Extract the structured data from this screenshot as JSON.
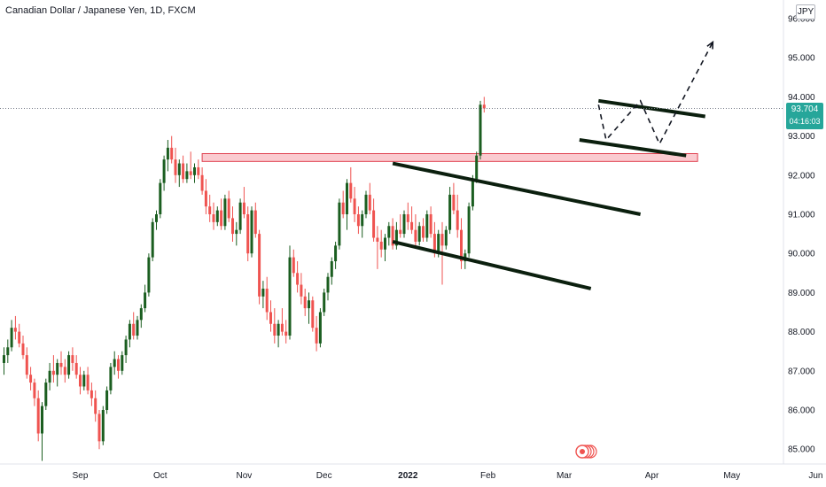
{
  "header": {
    "title": "Canadian Dollar / Japanese Yen, 1D, FXCM",
    "currency": "JPY"
  },
  "price_tag": {
    "price": "93.704",
    "countdown": "04:16:03"
  },
  "colors": {
    "up": "#26a69a",
    "up_body": "#1b5e20",
    "down": "#ef5350",
    "zone_fill": "#f8b9c0",
    "zone_border": "#e0404f",
    "trendline": "#0b1f0e",
    "projection": "#131722",
    "price_line": "#7a7f8c",
    "price_tag": "#26a69a"
  },
  "chart_data": {
    "type": "candlestick",
    "title": "Canadian Dollar / Japanese Yen, 1D, FXCM",
    "ylabel": "JPY",
    "ylim": [
      84.7,
      96.3
    ],
    "y_ticks": [
      {
        "value": 96.0,
        "label": "96.000"
      },
      {
        "value": 95.0,
        "label": "95.000"
      },
      {
        "value": 94.0,
        "label": "94.000"
      },
      {
        "value": 93.0,
        "label": "93.000"
      },
      {
        "value": 92.0,
        "label": "92.000"
      },
      {
        "value": 91.0,
        "label": "91.000"
      },
      {
        "value": 90.0,
        "label": "90.000"
      },
      {
        "value": 89.0,
        "label": "89.000"
      },
      {
        "value": 88.0,
        "label": "88.000"
      },
      {
        "value": 87.0,
        "label": "87.000"
      },
      {
        "value": 86.0,
        "label": "86.000"
      },
      {
        "value": 85.0,
        "label": "85.000"
      }
    ],
    "x_ticks": [
      {
        "label": "Sep",
        "bar": 20,
        "bold": false
      },
      {
        "label": "Oct",
        "bar": 41,
        "bold": false
      },
      {
        "label": "Nov",
        "bar": 63,
        "bold": false
      },
      {
        "label": "Dec",
        "bar": 84,
        "bold": false
      },
      {
        "label": "2022",
        "bar": 106,
        "bold": true
      },
      {
        "label": "Feb",
        "bar": 127,
        "bold": false
      },
      {
        "label": "Mar",
        "bar": 147,
        "bold": false
      },
      {
        "label": "Apr",
        "bar": 170,
        "bold": false
      },
      {
        "label": "May",
        "bar": 191,
        "bold": false
      },
      {
        "label": "Jun",
        "bar": 213,
        "bold": false
      }
    ],
    "last_price": 93.704,
    "candles": [
      [
        87.2,
        87.6,
        86.9,
        87.4
      ],
      [
        87.4,
        87.8,
        87.2,
        87.6
      ],
      [
        87.6,
        88.3,
        87.5,
        88.1
      ],
      [
        88.1,
        88.4,
        87.8,
        88.0
      ],
      [
        88.0,
        88.2,
        87.6,
        87.7
      ],
      [
        87.7,
        87.9,
        87.3,
        87.4
      ],
      [
        87.4,
        87.6,
        86.8,
        86.9
      ],
      [
        86.9,
        87.1,
        86.5,
        86.7
      ],
      [
        86.7,
        86.8,
        86.1,
        86.3
      ],
      [
        86.3,
        86.5,
        85.2,
        85.4
      ],
      [
        85.4,
        86.2,
        84.7,
        86.1
      ],
      [
        86.1,
        86.8,
        86.0,
        86.7
      ],
      [
        86.7,
        87.2,
        86.5,
        87.0
      ],
      [
        87.0,
        87.4,
        86.7,
        86.9
      ],
      [
        86.9,
        87.3,
        86.6,
        87.2
      ],
      [
        87.2,
        87.5,
        86.9,
        87.1
      ],
      [
        87.1,
        87.3,
        86.7,
        86.9
      ],
      [
        86.9,
        87.5,
        86.8,
        87.4
      ],
      [
        87.4,
        87.6,
        87.0,
        87.2
      ],
      [
        87.2,
        87.4,
        86.8,
        86.9
      ],
      [
        86.9,
        87.1,
        86.4,
        86.6
      ],
      [
        86.6,
        87.0,
        86.5,
        86.9
      ],
      [
        86.9,
        87.1,
        86.4,
        86.5
      ],
      [
        86.5,
        86.7,
        86.1,
        86.3
      ],
      [
        86.3,
        86.5,
        85.7,
        85.9
      ],
      [
        85.9,
        86.0,
        85.0,
        85.2
      ],
      [
        85.2,
        86.1,
        85.1,
        86.0
      ],
      [
        86.0,
        86.6,
        85.9,
        86.5
      ],
      [
        86.5,
        87.2,
        86.4,
        87.1
      ],
      [
        87.1,
        87.5,
        86.9,
        87.3
      ],
      [
        87.3,
        87.4,
        86.8,
        87.0
      ],
      [
        87.0,
        87.5,
        86.9,
        87.4
      ],
      [
        87.4,
        87.9,
        87.2,
        87.8
      ],
      [
        87.8,
        88.3,
        87.6,
        88.2
      ],
      [
        88.2,
        88.5,
        87.8,
        87.9
      ],
      [
        87.9,
        88.4,
        87.8,
        88.3
      ],
      [
        88.3,
        88.7,
        88.1,
        88.6
      ],
      [
        88.6,
        89.2,
        88.5,
        89.0
      ],
      [
        89.0,
        90.0,
        88.9,
        89.9
      ],
      [
        89.9,
        90.9,
        89.8,
        90.8
      ],
      [
        90.8,
        91.1,
        90.6,
        91.0
      ],
      [
        91.0,
        91.9,
        90.9,
        91.8
      ],
      [
        91.8,
        92.5,
        91.6,
        92.4
      ],
      [
        92.4,
        92.9,
        92.1,
        92.7
      ],
      [
        92.7,
        93.0,
        92.3,
        92.4
      ],
      [
        92.4,
        92.7,
        91.8,
        92.0
      ],
      [
        92.0,
        92.4,
        91.7,
        92.3
      ],
      [
        92.3,
        92.5,
        91.8,
        91.9
      ],
      [
        91.9,
        92.3,
        91.8,
        92.1
      ],
      [
        92.1,
        92.6,
        91.9,
        92.0
      ],
      [
        92.0,
        92.3,
        91.8,
        92.2
      ],
      [
        92.2,
        92.4,
        91.9,
        92.0
      ],
      [
        92.0,
        92.2,
        91.5,
        91.6
      ],
      [
        91.6,
        91.9,
        91.0,
        91.2
      ],
      [
        91.2,
        91.5,
        90.8,
        91.0
      ],
      [
        91.0,
        91.3,
        90.6,
        90.8
      ],
      [
        90.8,
        91.2,
        90.7,
        91.1
      ],
      [
        91.1,
        91.4,
        90.6,
        90.7
      ],
      [
        90.7,
        91.5,
        90.6,
        91.4
      ],
      [
        91.4,
        91.6,
        90.8,
        90.9
      ],
      [
        90.9,
        91.2,
        90.3,
        90.5
      ],
      [
        90.5,
        90.8,
        90.2,
        90.6
      ],
      [
        90.6,
        91.4,
        90.5,
        91.3
      ],
      [
        91.3,
        91.7,
        90.9,
        91.0
      ],
      [
        91.0,
        91.2,
        89.8,
        90.0
      ],
      [
        90.0,
        91.2,
        89.9,
        91.1
      ],
      [
        91.1,
        91.3,
        90.4,
        90.5
      ],
      [
        90.5,
        90.6,
        88.7,
        88.9
      ],
      [
        88.9,
        89.3,
        88.6,
        89.1
      ],
      [
        89.1,
        89.4,
        88.3,
        88.5
      ],
      [
        88.5,
        88.8,
        88.0,
        88.2
      ],
      [
        88.2,
        88.6,
        87.7,
        87.9
      ],
      [
        87.9,
        88.3,
        87.6,
        88.2
      ],
      [
        88.2,
        88.6,
        87.9,
        88.0
      ],
      [
        88.0,
        88.3,
        87.7,
        87.9
      ],
      [
        87.9,
        90.2,
        87.8,
        89.9
      ],
      [
        89.9,
        90.1,
        89.4,
        89.5
      ],
      [
        89.5,
        89.8,
        89.0,
        89.2
      ],
      [
        89.2,
        89.5,
        88.7,
        88.9
      ],
      [
        88.9,
        89.1,
        88.4,
        88.6
      ],
      [
        88.6,
        89.0,
        88.2,
        88.8
      ],
      [
        88.8,
        88.9,
        88.0,
        88.1
      ],
      [
        88.1,
        88.4,
        87.5,
        87.7
      ],
      [
        87.7,
        88.6,
        87.6,
        88.5
      ],
      [
        88.5,
        89.1,
        88.4,
        89.0
      ],
      [
        89.0,
        89.5,
        88.8,
        89.4
      ],
      [
        89.4,
        89.9,
        89.2,
        89.8
      ],
      [
        89.8,
        90.3,
        89.6,
        90.2
      ],
      [
        90.2,
        91.4,
        90.1,
        91.3
      ],
      [
        91.3,
        91.6,
        90.9,
        91.0
      ],
      [
        91.0,
        91.9,
        90.6,
        91.8
      ],
      [
        91.8,
        92.2,
        91.3,
        91.4
      ],
      [
        91.4,
        91.7,
        90.8,
        91.0
      ],
      [
        91.0,
        91.2,
        90.5,
        90.7
      ],
      [
        90.7,
        91.1,
        90.4,
        91.0
      ],
      [
        91.0,
        91.6,
        90.9,
        91.5
      ],
      [
        91.5,
        91.8,
        91.0,
        91.1
      ],
      [
        91.1,
        91.4,
        90.3,
        90.4
      ],
      [
        90.4,
        90.7,
        89.6,
        90.3
      ],
      [
        90.3,
        90.6,
        89.9,
        90.1
      ],
      [
        90.1,
        90.5,
        89.8,
        90.4
      ],
      [
        90.4,
        90.8,
        90.2,
        90.7
      ],
      [
        90.7,
        90.9,
        90.1,
        90.2
      ],
      [
        90.2,
        90.8,
        90.1,
        90.6
      ],
      [
        90.6,
        91.0,
        90.4,
        90.5
      ],
      [
        90.5,
        91.1,
        90.4,
        91.0
      ],
      [
        91.0,
        91.3,
        90.6,
        90.8
      ],
      [
        90.8,
        91.2,
        90.5,
        90.6
      ],
      [
        90.6,
        91.0,
        90.2,
        90.3
      ],
      [
        90.3,
        90.8,
        90.2,
        90.7
      ],
      [
        90.7,
        90.9,
        90.3,
        90.4
      ],
      [
        90.4,
        91.1,
        90.3,
        91.0
      ],
      [
        91.0,
        91.2,
        90.4,
        90.5
      ],
      [
        90.5,
        90.8,
        89.9,
        90.0
      ],
      [
        90.0,
        90.6,
        89.9,
        90.5
      ],
      [
        90.5,
        90.8,
        89.2,
        90.2
      ],
      [
        90.2,
        90.7,
        90.1,
        90.6
      ],
      [
        90.6,
        91.7,
        90.5,
        91.5
      ],
      [
        91.5,
        91.8,
        91.0,
        91.1
      ],
      [
        91.1,
        91.5,
        90.4,
        90.6
      ],
      [
        90.6,
        90.9,
        89.6,
        89.8
      ],
      [
        89.8,
        90.1,
        89.6,
        90.0
      ],
      [
        90.0,
        91.3,
        89.9,
        91.2
      ],
      [
        91.2,
        92.0,
        91.1,
        91.9
      ],
      [
        91.9,
        92.6,
        91.8,
        92.5
      ],
      [
        92.5,
        93.9,
        92.4,
        93.8
      ],
      [
        93.8,
        94.0,
        93.6,
        93.704
      ]
    ],
    "resistance_zone": {
      "y_low": 92.35,
      "y_high": 92.55,
      "from_bar": 52,
      "to_bar": 182
    },
    "trendlines": [
      {
        "name": "lower-channel-top",
        "from": [
          102,
          92.3
        ],
        "to": [
          167,
          91.0
        ]
      },
      {
        "name": "lower-channel-bottom",
        "from": [
          102,
          90.3
        ],
        "to": [
          154,
          89.1
        ]
      },
      {
        "name": "upper-channel-top",
        "from": [
          156,
          93.9
        ],
        "to": [
          184,
          93.5
        ]
      },
      {
        "name": "upper-channel-bottom",
        "from": [
          151,
          92.9
        ],
        "to": [
          179,
          92.5
        ]
      }
    ],
    "projection": [
      [
        156,
        93.8
      ],
      [
        158,
        92.9
      ],
      [
        167,
        93.9
      ],
      [
        172,
        92.8
      ],
      [
        186,
        95.4
      ]
    ]
  }
}
